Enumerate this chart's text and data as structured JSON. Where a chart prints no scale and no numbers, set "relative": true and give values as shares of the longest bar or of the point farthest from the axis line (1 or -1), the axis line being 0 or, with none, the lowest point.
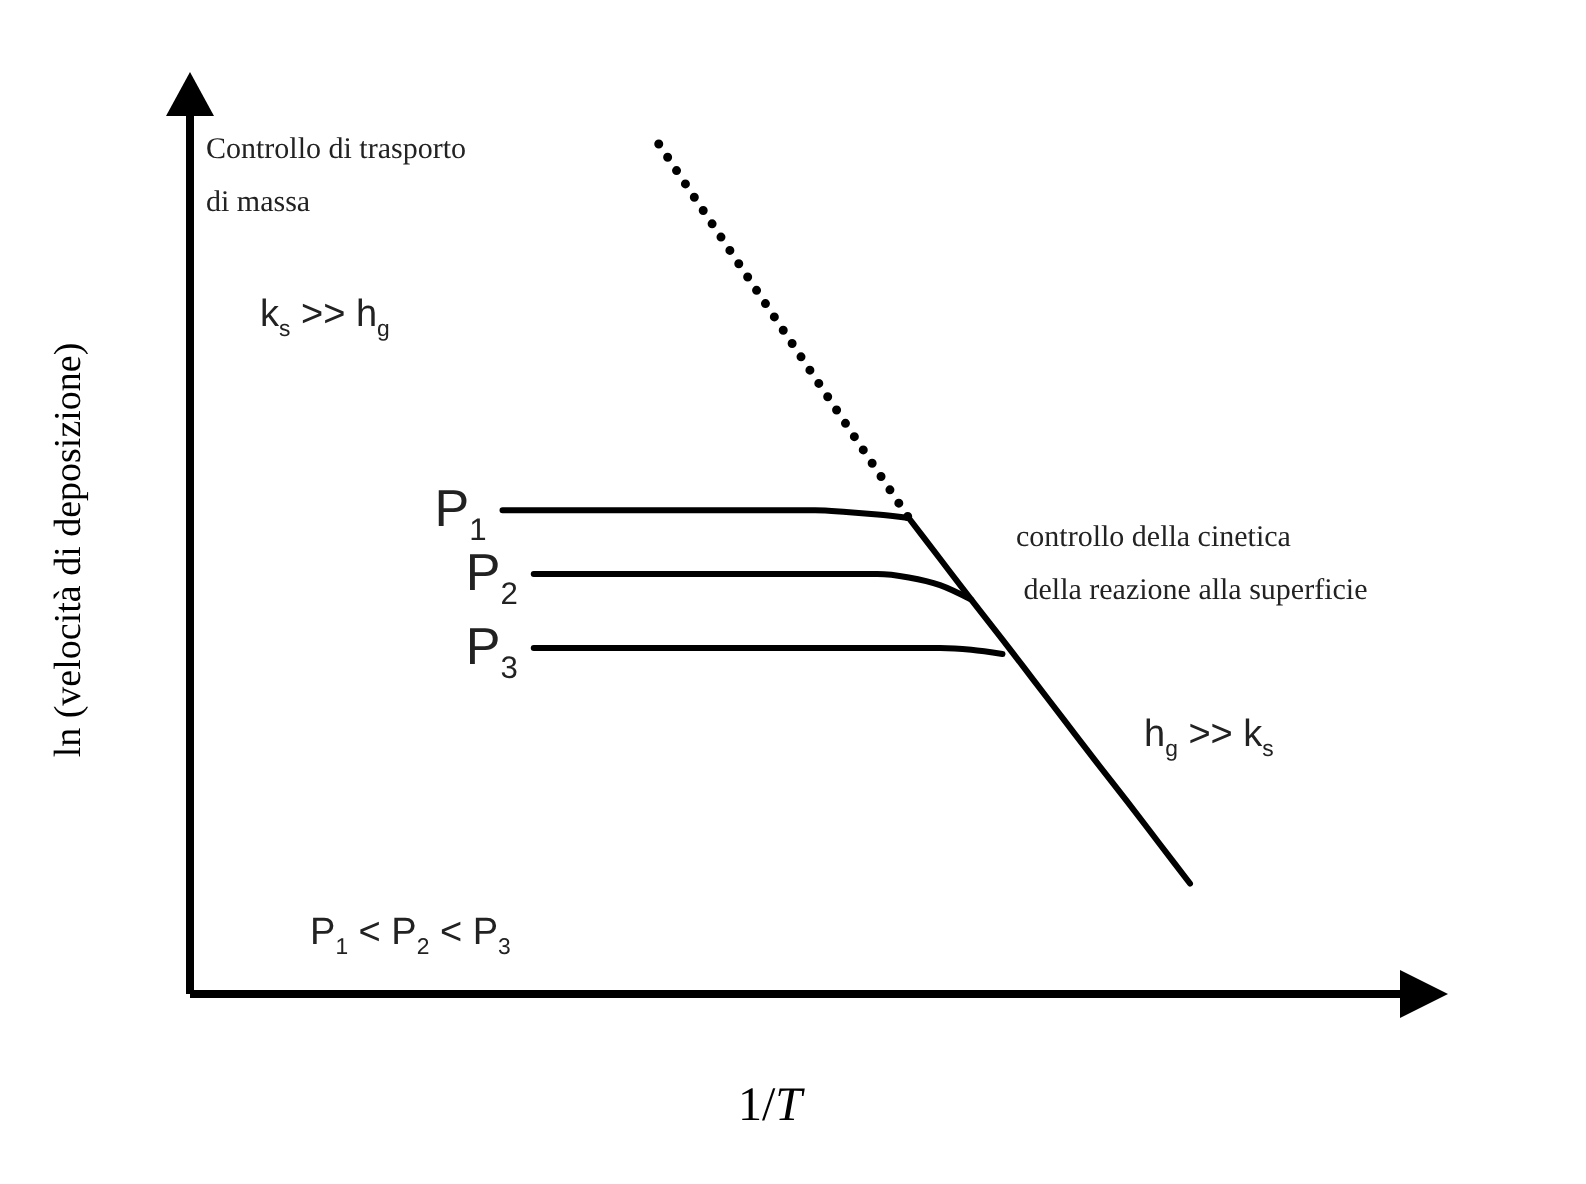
{
  "chart_data": {
    "type": "line",
    "relative": true,
    "xlabel": "1/T",
    "ylabel": "ln (velocità di deposizione)",
    "categories": [
      null,
      null,
      null,
      null,
      null,
      null,
      null,
      null,
      null,
      null,
      null,
      null,
      null,
      null,
      null,
      null,
      null,
      null,
      null,
      null,
      null,
      null,
      null,
      null,
      null,
      null,
      null,
      null,
      null,
      null,
      null,
      null,
      null,
      null,
      null,
      null,
      null,
      null,
      null,
      null,
      null
    ],
    "series": [
      {
        "color": "#000000",
        "line_style": "dotted",
        "values": [
          null,
          null,
          null,
          null,
          null,
          null,
          null,
          null,
          null,
          null,
          null,
          null,
          null,
          null,
          null,
          1,
          0.945,
          0.89,
          0.835,
          0.78,
          0.725,
          0.67,
          0.615,
          0.56,
          null,
          null,
          null,
          null,
          null,
          null,
          null,
          null,
          null,
          null,
          null,
          null,
          null,
          null,
          null,
          null,
          null
        ]
      },
      {
        "color": "#000000",
        "line_style": "solid",
        "values": [
          null,
          null,
          null,
          null,
          null,
          null,
          null,
          null,
          null,
          null,
          null,
          null,
          null,
          null,
          null,
          null,
          null,
          null,
          null,
          null,
          null,
          null,
          null,
          0.56,
          0.512,
          0.464,
          0.417,
          0.369,
          0.321,
          0.273,
          0.226,
          0.178,
          0.13,
          null,
          null,
          null,
          null,
          null,
          null,
          null,
          null
        ]
      },
      {
        "name": "P$_{1}$",
        "color": "#000000",
        "line_style": "solid",
        "values": [
          null,
          null,
          null,
          null,
          null,
          null,
          null,
          null,
          null,
          null,
          0.569,
          0.569,
          0.569,
          0.569,
          0.569,
          0.569,
          0.569,
          0.569,
          0.569,
          0.569,
          0.569,
          0.567,
          0.564,
          0.56,
          null,
          null,
          null,
          null,
          null,
          null,
          null,
          null,
          null,
          null,
          null,
          null,
          null,
          null,
          null,
          null,
          null
        ]
      },
      {
        "name": "P$_{2}$",
        "color": "#000000",
        "line_style": "solid",
        "values": [
          null,
          null,
          null,
          null,
          null,
          null,
          null,
          null,
          null,
          null,
          null,
          0.494,
          0.494,
          0.494,
          0.494,
          0.494,
          0.494,
          0.494,
          0.494,
          0.494,
          0.494,
          0.494,
          0.494,
          0.49,
          0.481,
          0.464,
          null,
          null,
          null,
          null,
          null,
          null,
          null,
          null,
          null,
          null,
          null,
          null,
          null,
          null,
          null
        ]
      },
      {
        "name": "P$_{3}$",
        "color": "#000000",
        "line_style": "solid",
        "values": [
          null,
          null,
          null,
          null,
          null,
          null,
          null,
          null,
          null,
          null,
          null,
          0.407,
          0.407,
          0.407,
          0.407,
          0.407,
          0.407,
          0.407,
          0.407,
          0.407,
          0.407,
          0.407,
          0.407,
          0.407,
          0.407,
          0.405,
          0.4,
          null,
          null,
          null,
          null,
          null,
          null,
          null,
          null,
          null,
          null,
          null,
          null,
          null,
          null
        ]
      }
    ],
    "annotations": [
      "Controllo di trasporto\ndi massa",
      "k$_{s}$ >> h$_{g}$",
      "controllo della cinetica\n della reazione alla superficie",
      "h$_{g}$ >> k$_{s}$",
      "P$_{1}$ < P$_{2}$ < P$_{3}$"
    ]
  }
}
